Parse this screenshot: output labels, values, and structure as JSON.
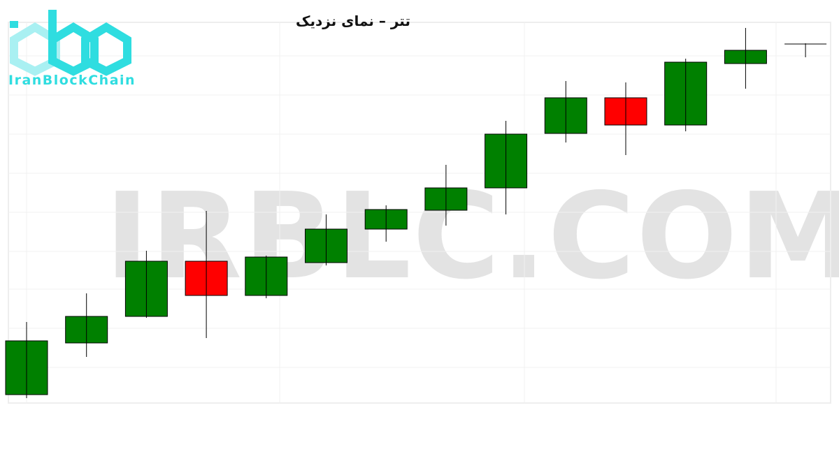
{
  "chart_data": {
    "type": "candlestick",
    "title": "تتر – نمای نزدیک",
    "xlabel": "",
    "ylabel": "",
    "grid": true,
    "ylim": [
      0,
      60
    ],
    "up_color": "#008000",
    "down_color": "#ff0000",
    "candles": [
      {
        "open": 3.5,
        "high": 13.9,
        "low": 3.0,
        "close": 11.2
      },
      {
        "open": 10.9,
        "high": 18.0,
        "low": 8.9,
        "close": 14.7
      },
      {
        "open": 14.7,
        "high": 24.1,
        "low": 14.5,
        "close": 22.6
      },
      {
        "open": 22.6,
        "high": 29.8,
        "low": 11.6,
        "close": 17.7
      },
      {
        "open": 17.7,
        "high": 23.4,
        "low": 17.3,
        "close": 23.2
      },
      {
        "open": 22.4,
        "high": 29.3,
        "low": 22.0,
        "close": 27.2
      },
      {
        "open": 27.2,
        "high": 30.6,
        "low": 25.4,
        "close": 30.0
      },
      {
        "open": 29.9,
        "high": 36.4,
        "low": 27.7,
        "close": 33.1
      },
      {
        "open": 33.1,
        "high": 42.7,
        "low": 29.3,
        "close": 40.8
      },
      {
        "open": 40.9,
        "high": 48.4,
        "low": 39.6,
        "close": 46.0
      },
      {
        "open": 46.0,
        "high": 48.2,
        "low": 37.8,
        "close": 42.1
      },
      {
        "open": 42.1,
        "high": 51.6,
        "low": 41.2,
        "close": 51.1
      },
      {
        "open": 50.9,
        "high": 56.0,
        "low": 47.3,
        "close": 52.8
      },
      {
        "open": 53.7,
        "high": 53.8,
        "low": 51.8,
        "close": 53.7
      }
    ]
  },
  "logo": {
    "text": "IranBlockChain",
    "color": "#2fdde0"
  },
  "watermark": "IRBLC.COM"
}
